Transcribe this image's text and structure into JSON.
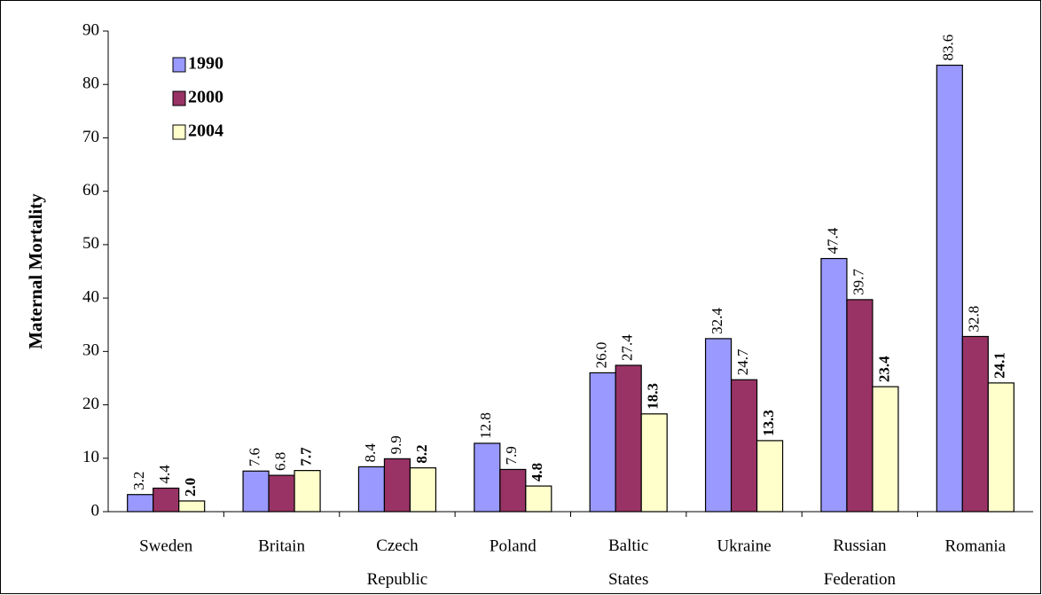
{
  "chart_data": {
    "type": "bar",
    "y_label": "Maternal Mortality",
    "categories": [
      "Sweden",
      "Britain",
      "Czech Republic",
      "Poland",
      "Baltic States",
      "Ukraine",
      "Russian Federation",
      "Romania"
    ],
    "series": [
      {
        "name": "1990",
        "color": "#9999ff",
        "label_bold": false,
        "values": [
          3.2,
          7.6,
          8.4,
          12.8,
          26,
          32.4,
          47.4,
          83.6
        ],
        "value_labels": [
          "3.2",
          "7.6",
          "8.4",
          "12.8",
          "26.0",
          "32.4",
          "47.4",
          "83.6"
        ]
      },
      {
        "name": "2000",
        "color": "#993366",
        "label_bold": false,
        "values": [
          4.4,
          6.8,
          9.9,
          7.9,
          27.4,
          24.7,
          39.7,
          32.8
        ],
        "value_labels": [
          "4.4",
          "6.8",
          "9.9",
          "7.9",
          "27.4",
          "24.7",
          "39.7",
          "32.8"
        ]
      },
      {
        "name": "2004",
        "color": "#ffffcc",
        "label_bold": true,
        "values": [
          2,
          7.7,
          8.2,
          4.8,
          18.3,
          13.3,
          23.4,
          24.1
        ],
        "value_labels": [
          "2.0",
          "7.7",
          "8.2",
          "4.8",
          "18.3",
          "13.3",
          "23.4",
          "24.1"
        ]
      }
    ],
    "ylim": [
      0,
      90
    ],
    "yticks": [
      0,
      10,
      20,
      30,
      40,
      50,
      60,
      70,
      80,
      90
    ],
    "grid": false,
    "legend": "upper left"
  }
}
